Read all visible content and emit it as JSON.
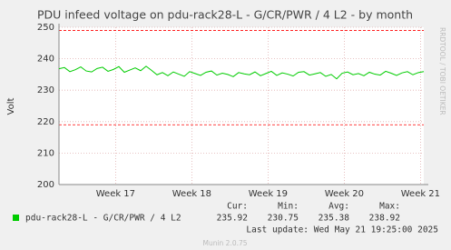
{
  "chart_data": {
    "type": "line",
    "title": "PDU infeed voltage on pdu-rack28-L - G/CR/PWR / 4 L2 - by month",
    "y_label": "Volt",
    "side_text": "RRDTOOL / TOBI OETIKER",
    "x": [
      0,
      0.5,
      1,
      1.5,
      2,
      2.5,
      3,
      3.5,
      4,
      4.5,
      5,
      5.5,
      6,
      6.5,
      7,
      7.5,
      8,
      8.5,
      9,
      9.5,
      10,
      10.5,
      11,
      11.5,
      12,
      12.5,
      13,
      13.5,
      14,
      14.5,
      15,
      15.5,
      16,
      16.5,
      17,
      17.5,
      18,
      18.5,
      19,
      19.5,
      20,
      20.5,
      21,
      21.5,
      22,
      22.5,
      23,
      23.5,
      24,
      24.5,
      25,
      25.5,
      26,
      26.5,
      27,
      27.5,
      28,
      28.5,
      29,
      29.5,
      30,
      30.5,
      31,
      31.5,
      32,
      32.5,
      33,
      33.5
    ],
    "series": [
      {
        "name": "pdu-rack28-L - G/CR/PWR / 4 L2",
        "color": "#00cc00",
        "values": [
          236.8,
          237.2,
          235.9,
          236.5,
          237.4,
          236.1,
          235.8,
          236.9,
          237.3,
          236.0,
          236.6,
          237.5,
          235.7,
          236.4,
          237.1,
          236.2,
          237.6,
          236.3,
          234.9,
          235.6,
          234.6,
          235.8,
          235.1,
          234.4,
          235.9,
          235.3,
          234.7,
          235.7,
          236.1,
          234.8,
          235.4,
          235.0,
          234.3,
          235.6,
          235.2,
          234.9,
          235.8,
          234.6,
          235.3,
          236.0,
          234.7,
          235.5,
          235.1,
          234.5,
          235.7,
          235.9,
          234.8,
          235.2,
          235.6,
          234.4,
          235.0,
          233.6,
          235.4,
          235.8,
          234.9,
          235.3,
          234.6,
          235.7,
          235.1,
          234.8,
          236.0,
          235.4,
          234.7,
          235.5,
          235.9,
          234.9,
          235.6,
          235.9
        ]
      }
    ],
    "xlim": [
      0,
      33.5
    ],
    "xticks": [
      {
        "value": 5.2,
        "label": "Week 17"
      },
      {
        "value": 12.2,
        "label": "Week 18"
      },
      {
        "value": 19.2,
        "label": "Week 19"
      },
      {
        "value": 26.2,
        "label": "Week 20"
      },
      {
        "value": 33.2,
        "label": "Week 21"
      }
    ],
    "ylim": [
      200,
      250
    ],
    "yticks": [
      200,
      210,
      220,
      230,
      240,
      250
    ],
    "grid": true,
    "threshold_lines": [
      249,
      219
    ],
    "threshold_color": "#ff0000",
    "legend_stats": {
      "labels": [
        "Cur:",
        "Min:",
        "Avg:",
        "Max:"
      ],
      "values": [
        235.92,
        230.75,
        235.38,
        238.92
      ]
    },
    "last_update": "Last update: Wed May 21 19:25:00 2025",
    "footer": "Munin 2.0.75"
  }
}
